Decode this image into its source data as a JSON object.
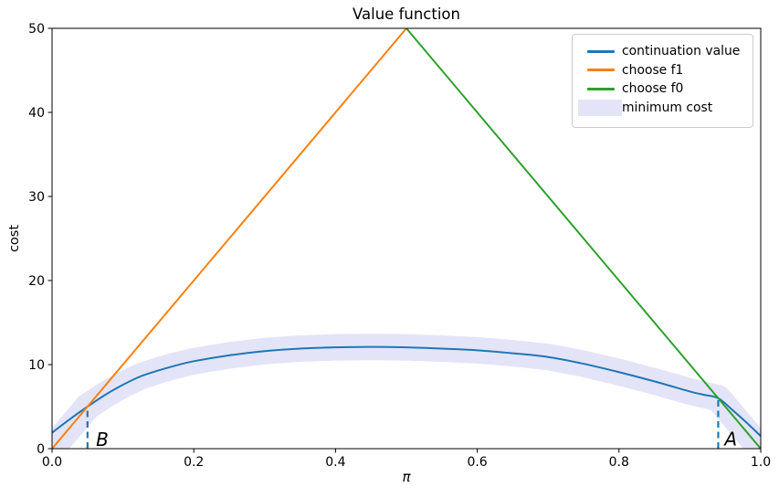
{
  "chart_data": {
    "type": "line",
    "title": "Value function",
    "xlabel": "π",
    "ylabel": "cost",
    "xlim": [
      0,
      1
    ],
    "ylim": [
      0,
      50
    ],
    "grid": false,
    "legend_position": "upper right",
    "xticks": {
      "values": [
        0,
        0.2,
        0.4,
        0.6,
        0.8,
        1.0
      ],
      "labels": [
        "0.0",
        "0.2",
        "0.4",
        "0.6",
        "0.8",
        "1.0"
      ]
    },
    "yticks": {
      "values": [
        0,
        10,
        20,
        30,
        40,
        50
      ],
      "labels": [
        "0",
        "10",
        "20",
        "30",
        "40",
        "50"
      ]
    },
    "series": [
      {
        "name": "continuation value",
        "color": "#1f77b4",
        "style": "line",
        "x": [
          0,
          0.025,
          0.05,
          0.075,
          0.1,
          0.125,
          0.15,
          0.175,
          0.2,
          0.25,
          0.3,
          0.35,
          0.4,
          0.45,
          0.5,
          0.55,
          0.6,
          0.65,
          0.7,
          0.75,
          0.8,
          0.85,
          0.9,
          0.92,
          0.94,
          0.96,
          0.98,
          1.0
        ],
        "y": [
          1.9,
          3.5,
          5.0,
          6.4,
          7.6,
          8.6,
          9.3,
          9.9,
          10.4,
          11.1,
          11.6,
          11.9,
          12.05,
          12.1,
          12.05,
          11.9,
          11.7,
          11.35,
          10.9,
          10.1,
          9.1,
          8.0,
          6.8,
          6.4,
          6.0,
          4.6,
          3.1,
          1.5
        ]
      },
      {
        "name": "choose f1",
        "color": "#ff7f0e",
        "style": "line",
        "x": [
          0,
          0.5
        ],
        "y": [
          0,
          50
        ]
      },
      {
        "name": "choose f0",
        "color": "#2ca02c",
        "style": "line",
        "x": [
          0.5,
          1.0
        ],
        "y": [
          50,
          0
        ]
      },
      {
        "name": "minimum cost",
        "color": "#e4e4f8",
        "style": "band",
        "derivation": "pointwise minimum of the three curves",
        "stroke_px": 29
      }
    ],
    "annotations": [
      {
        "label": "B",
        "x": 0.05,
        "y_top": 5.0,
        "text_x": 0.062,
        "text_y": 0.35,
        "color": "#1f77b4",
        "line_style": "dashed"
      },
      {
        "label": "A",
        "x": 0.94,
        "y_top": 6.0,
        "text_x": 0.949,
        "text_y": 0.4,
        "color": "#1f77b4",
        "line_style": "dashed"
      }
    ]
  }
}
